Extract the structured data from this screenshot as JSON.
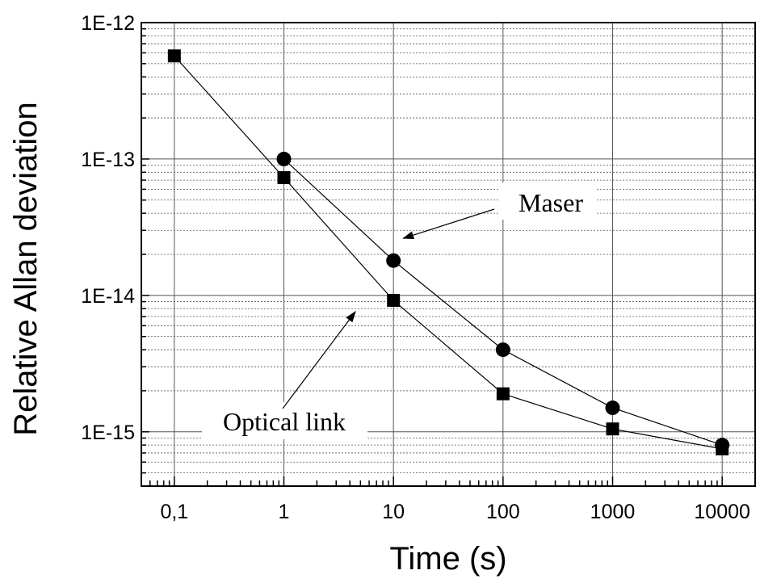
{
  "chart_data": {
    "type": "scatter",
    "title": "",
    "xlabel": "Time (s)",
    "ylabel": "Relative Allan deviation",
    "x_scale": "log",
    "y_scale": "log",
    "xlim": [
      0.05,
      20000
    ],
    "ylim": [
      4e-16,
      1e-12
    ],
    "grid": true,
    "x_ticks": [
      {
        "value": 0.1,
        "label": "0,1"
      },
      {
        "value": 1,
        "label": "1"
      },
      {
        "value": 10,
        "label": "10"
      },
      {
        "value": 100,
        "label": "100"
      },
      {
        "value": 1000,
        "label": "1000"
      },
      {
        "value": 10000,
        "label": "10000"
      }
    ],
    "y_ticks": [
      {
        "value": 1e-12,
        "label": "1E-12"
      },
      {
        "value": 1e-13,
        "label": "1E-13"
      },
      {
        "value": 1e-14,
        "label": "1E-14"
      },
      {
        "value": 1e-15,
        "label": "1E-15"
      }
    ],
    "series": [
      {
        "marker": "circle",
        "color": "#000000",
        "x": [
          1,
          10,
          100,
          1000,
          10000
        ],
        "y": [
          1e-13,
          1.8e-14,
          4e-15,
          1.5e-15,
          8e-16
        ]
      },
      {
        "marker": "square",
        "color": "#000000",
        "x": [
          0.1,
          1,
          10,
          100,
          1000,
          10000
        ],
        "y": [
          5.7e-13,
          7.3e-14,
          9.2e-15,
          1.9e-15,
          1.05e-15,
          7.5e-16
        ]
      }
    ],
    "annotations": [
      {
        "text": "Maser",
        "points_to_series": 0,
        "points_to_x": 10
      },
      {
        "text": "Optical link",
        "points_to_series": 1,
        "points_to_x": 10
      }
    ]
  }
}
